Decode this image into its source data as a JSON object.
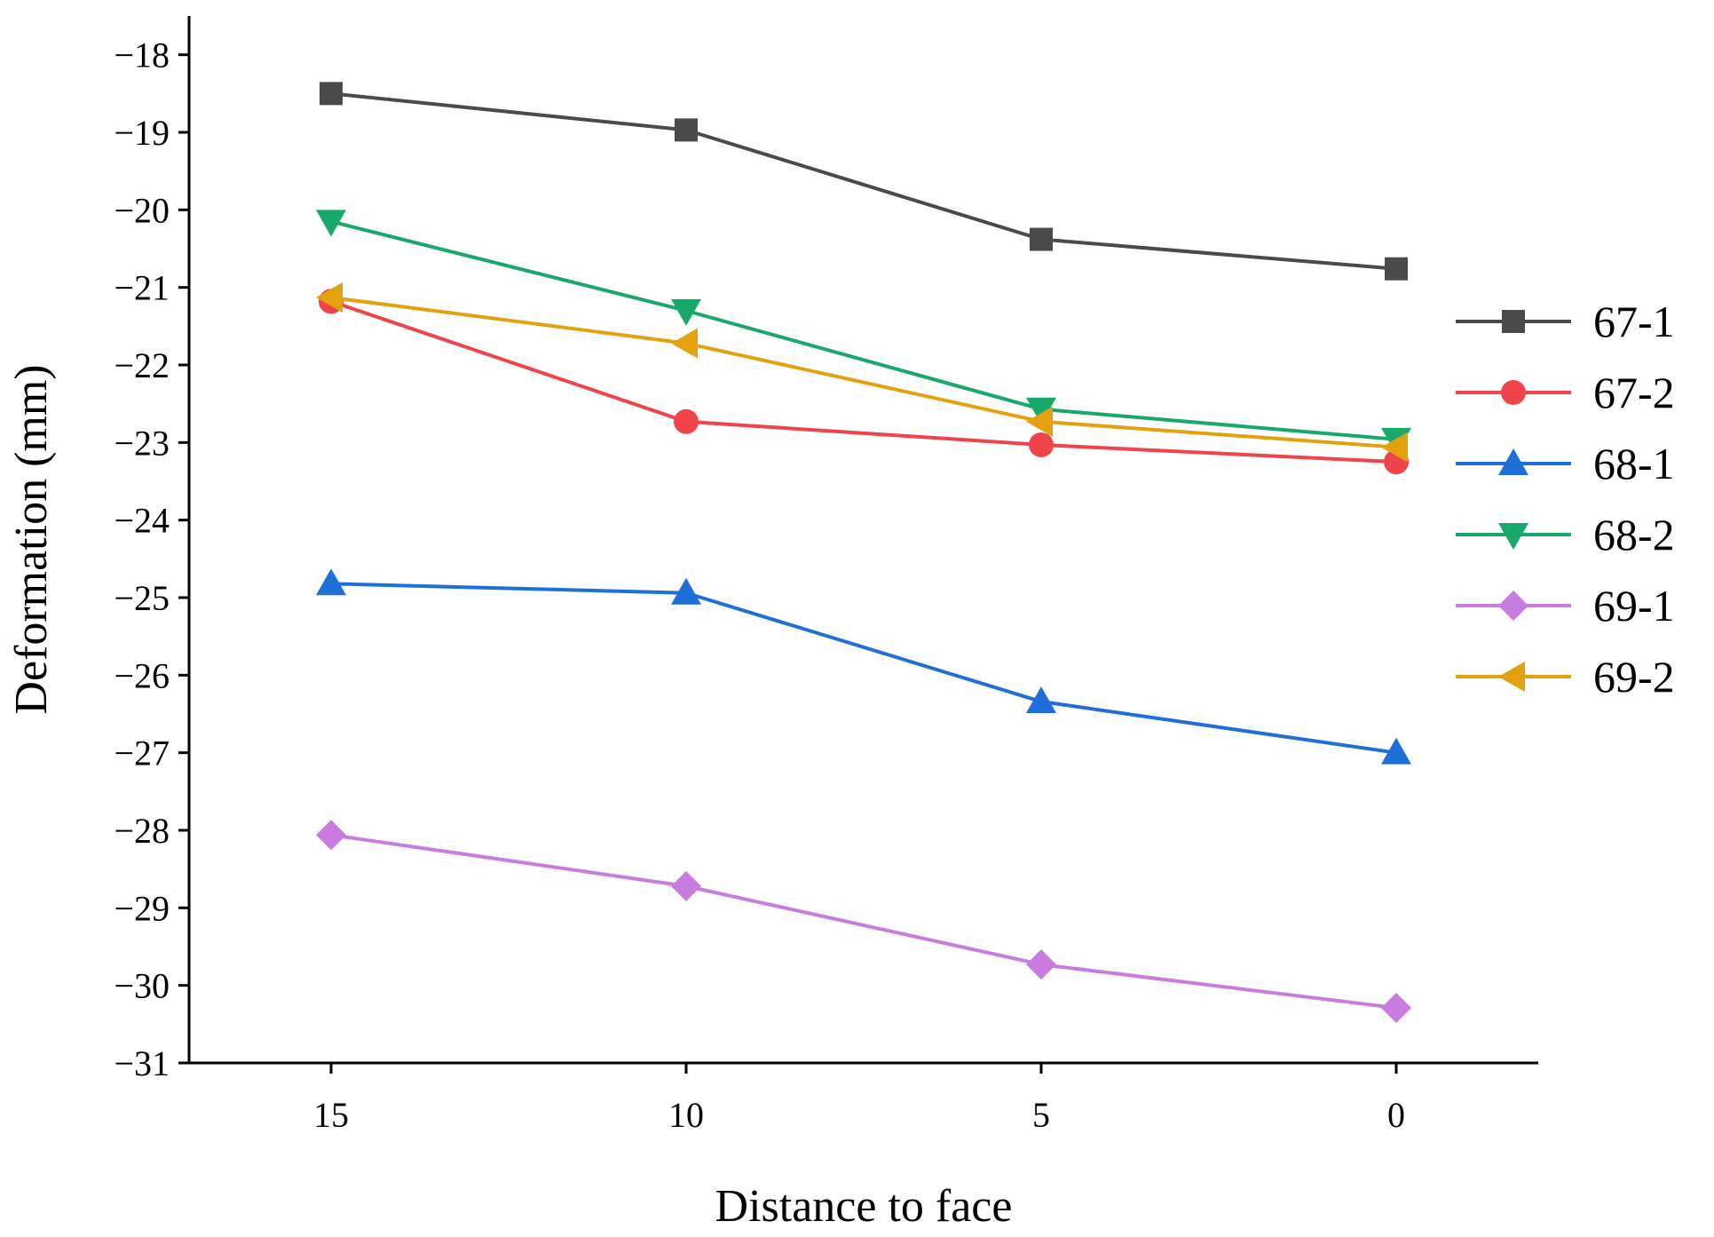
{
  "chart_data": {
    "type": "line",
    "title": "",
    "xlabel": "Distance to face",
    "ylabel": "Deformation (mm)",
    "x": [
      15,
      10,
      5,
      0
    ],
    "x_ticks": [
      15,
      10,
      5,
      0
    ],
    "x_tick_labels": [
      "15",
      "10",
      "5",
      "0"
    ],
    "xlim": [
      17,
      -2
    ],
    "ylim": [
      -31,
      -17.5
    ],
    "y_ticks": [
      -18,
      -19,
      -20,
      -21,
      -22,
      -23,
      -24,
      -25,
      -26,
      -27,
      -28,
      -29,
      -30,
      -31
    ],
    "y_tick_labels": [
      "−18",
      "−19",
      "−20",
      "−21",
      "−22",
      "−23",
      "−24",
      "−25",
      "−26",
      "−27",
      "−28",
      "−29",
      "−30",
      "−31"
    ],
    "grid": false,
    "legend_position": "right",
    "series": [
      {
        "name": "67-1",
        "color": "#4a4a4a",
        "marker": "square",
        "values": [
          -18.5,
          -18.97,
          -20.38,
          -20.76
        ]
      },
      {
        "name": "67-2",
        "color": "#f0434a",
        "marker": "circle",
        "values": [
          -21.18,
          -22.73,
          -23.03,
          -23.25
        ]
      },
      {
        "name": "68-1",
        "color": "#1f6fd9",
        "marker": "triangle-up",
        "values": [
          -24.82,
          -24.94,
          -26.34,
          -27.0
        ]
      },
      {
        "name": "68-2",
        "color": "#17a86a",
        "marker": "triangle-down",
        "values": [
          -20.15,
          -21.3,
          -22.57,
          -22.96
        ]
      },
      {
        "name": "69-1",
        "color": "#c97be0",
        "marker": "diamond",
        "values": [
          -28.06,
          -28.72,
          -29.73,
          -30.29
        ]
      },
      {
        "name": "69-2",
        "color": "#e3a20d",
        "marker": "triangle-left",
        "values": [
          -21.13,
          -21.72,
          -22.73,
          -23.06
        ]
      }
    ]
  }
}
